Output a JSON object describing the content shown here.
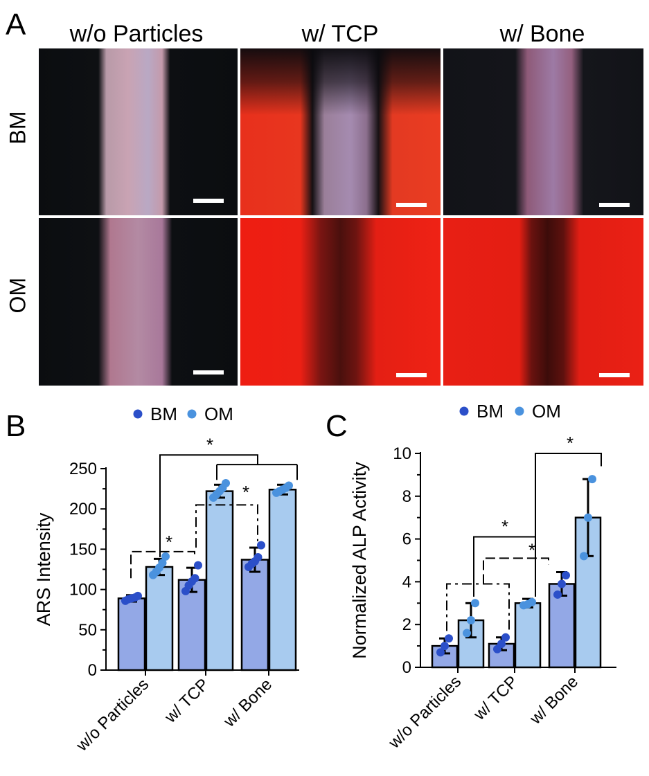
{
  "panel_a": {
    "letter": "A",
    "columns": [
      "w/o Particles",
      "w/ TCP",
      "w/ Bone"
    ],
    "rows": [
      "BM",
      "OM"
    ]
  },
  "chart_data": [
    {
      "panel": "B",
      "type": "bar",
      "ylabel": "ARS Intensity",
      "ylim": [
        0,
        250
      ],
      "yticks": [
        0,
        50,
        100,
        150,
        200,
        250
      ],
      "categories": [
        "w/o Particles",
        "w/ TCP",
        "w/ Bone"
      ],
      "legend": [
        "BM",
        "OM"
      ],
      "series": [
        {
          "name": "BM",
          "color": "#2b4fc9",
          "bar_color": "#93a8e6",
          "values": [
            89,
            112,
            137
          ],
          "errors": [
            4,
            15,
            15
          ],
          "points": [
            [
              86,
              88,
              89,
              90,
              92
            ],
            [
              98,
              105,
              110,
              114,
              130
            ],
            [
              128,
              132,
              135,
              140,
              155
            ]
          ]
        },
        {
          "name": "OM",
          "color": "#4a92de",
          "bar_color": "#a8cbef",
          "values": [
            128,
            222,
            224
          ],
          "errors": [
            10,
            8,
            6
          ],
          "points": [
            [
              118,
              122,
              127,
              133,
              141
            ],
            [
              214,
              218,
              222,
              226,
              232
            ],
            [
              220,
              222,
              224,
              226,
              229
            ]
          ]
        }
      ],
      "annotations": [
        "*",
        "*",
        "*"
      ]
    },
    {
      "panel": "C",
      "type": "bar",
      "ylabel": "Normalized ALP Activity",
      "ylim": [
        0,
        10
      ],
      "yticks": [
        0,
        2,
        4,
        6,
        8,
        10
      ],
      "categories": [
        "w/o Particles",
        "w/ TCP",
        "w/ Bone"
      ],
      "legend": [
        "BM",
        "OM"
      ],
      "series": [
        {
          "name": "BM",
          "color": "#2b4fc9",
          "bar_color": "#93a8e6",
          "values": [
            1.0,
            1.1,
            3.9
          ],
          "errors": [
            0.35,
            0.3,
            0.55
          ],
          "points": [
            [
              0.7,
              1.0,
              1.35
            ],
            [
              0.85,
              1.1,
              1.4
            ],
            [
              3.4,
              3.9,
              4.3
            ]
          ]
        },
        {
          "name": "OM",
          "color": "#4a92de",
          "bar_color": "#a8cbef",
          "values": [
            2.2,
            3.0,
            7.0
          ],
          "errors": [
            0.8,
            0.2,
            1.8
          ],
          "points": [
            [
              1.6,
              2.2,
              3.0
            ],
            [
              2.9,
              2.95,
              3.05
            ],
            [
              5.2,
              7.0,
              8.8
            ]
          ]
        }
      ],
      "annotations": [
        "*",
        "*",
        "*"
      ]
    }
  ]
}
